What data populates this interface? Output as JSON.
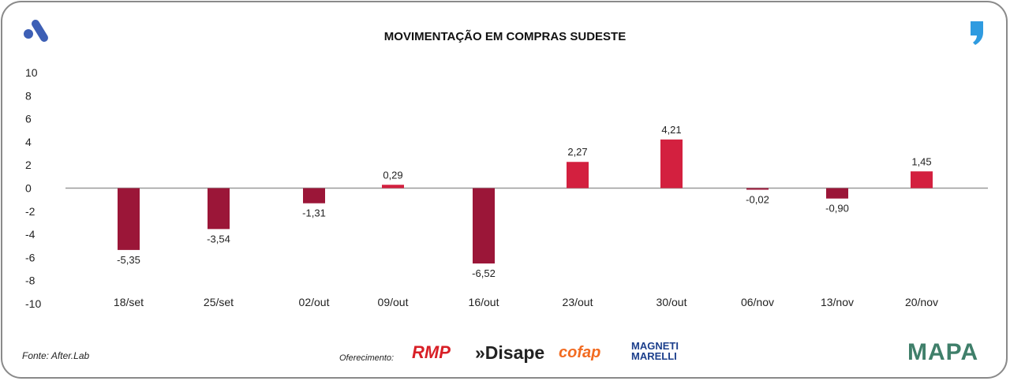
{
  "chart_data": {
    "type": "bar",
    "title": "MOVIMENTAÇÃO EM COMPRAS SUDESTE",
    "categories": [
      "18/set",
      "25/set",
      "02/out",
      "09/out",
      "16/out",
      "23/out",
      "30/out",
      "06/nov",
      "13/nov",
      "20/nov"
    ],
    "values": [
      -5.35,
      -3.54,
      -1.31,
      0.29,
      -6.52,
      2.27,
      4.21,
      -0.02,
      -0.9,
      1.45
    ],
    "labels": [
      "-5,35",
      "-3,54",
      "-1,31",
      "0,29",
      "-6,52",
      "2,27",
      "4,21",
      "-0,02",
      "-0,90",
      "1,45"
    ],
    "ylim": [
      -10,
      10
    ],
    "yticks": [
      10,
      8,
      6,
      4,
      2,
      0,
      -2,
      -4,
      -6,
      -8,
      -10
    ],
    "xlabel": "",
    "ylabel": "",
    "colors": {
      "positive": "#d3203f",
      "negative": "#9b1638"
    }
  },
  "footer": {
    "source": "Fonte: After.Lab",
    "sponsor_label": "Oferecimento:",
    "sponsors": [
      "RMP",
      "»Disape",
      "cofap",
      "MAGNETI MARELLI"
    ],
    "brand": "MAPA"
  }
}
